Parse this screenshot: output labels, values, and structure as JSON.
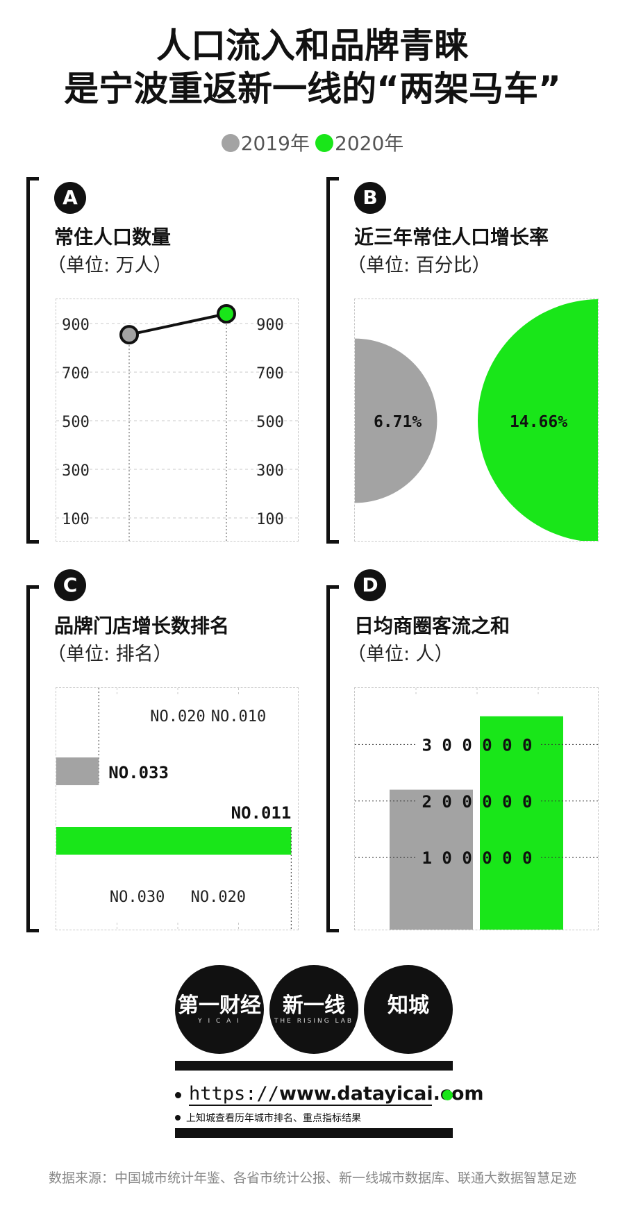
{
  "title_line1": "人口流入和品牌青睐",
  "title_line2": "是宁波重返新一线的“两架马车”",
  "legend": [
    {
      "label": "2019年",
      "color": "#a3a3a3"
    },
    {
      "label": "2020年",
      "color": "#19e619"
    }
  ],
  "colors": {
    "y2019": "#a3a3a3",
    "y2020": "#19e619"
  },
  "panels": {
    "a": {
      "badge": "A",
      "title": "常住人口数量",
      "unit": "（单位: 万人）"
    },
    "b": {
      "badge": "B",
      "title": "近三年常住人口增长率",
      "unit": "（单位: 百分比）"
    },
    "c": {
      "badge": "C",
      "title": "品牌门店增长数排名",
      "unit": "（单位: 排名）"
    },
    "d": {
      "badge": "D",
      "title": "日均商圈客流之和",
      "unit": "（单位: 人）"
    }
  },
  "chart_data": [
    {
      "type": "line",
      "categories": [
        "2019年",
        "2020年"
      ],
      "values": [
        854,
        940
      ],
      "ylim": [
        0,
        1000
      ],
      "yticks": [
        "900",
        "700",
        "500",
        "300",
        "100"
      ],
      "ytick_values": [
        900,
        700,
        500,
        300,
        100
      ]
    },
    {
      "type": "pie",
      "categories": [
        "2019年",
        "2020年"
      ],
      "values": [
        6.71,
        14.66
      ],
      "labels": [
        "6.71%",
        "14.66%"
      ]
    },
    {
      "type": "bar",
      "categories": [
        "2019年",
        "2020年"
      ],
      "values": [
        33,
        11
      ],
      "labels": [
        "NO.033",
        "NO.011"
      ],
      "ticks_top": [
        "NO.020",
        "NO.010"
      ],
      "ticks_bottom": [
        "NO.030",
        "NO.020"
      ],
      "tick_values_top": [
        20,
        10
      ],
      "tick_values_bottom": [
        30,
        20
      ],
      "range_top": [
        40,
        0
      ],
      "range_bottom": [
        40,
        10
      ]
    },
    {
      "type": "bar",
      "categories": [
        "2019年",
        "2020年"
      ],
      "values": [
        220000,
        350000
      ],
      "ylim": [
        -30000,
        400000
      ],
      "yticks": [
        "3 0 0 0 0 0",
        "2 0 0 0 0 0",
        "1 0 0 0 0 0"
      ],
      "ytick_values": [
        300000,
        200000,
        100000
      ]
    }
  ],
  "logos": [
    {
      "main": "第一财经",
      "sub": "Y I C A I"
    },
    {
      "main": "新一线",
      "sub": "THE RISING LAB"
    },
    {
      "main": "知城",
      "sub": ""
    }
  ],
  "url_prefix": "https://",
  "url_domain": "www.datayicai.com",
  "url_note": "上知城查看历年城市排名、重点指标结果",
  "source": "数据来源：中国城市统计年鉴、各省市统计公报、新一线城市数据库、联通大数据智慧足迹"
}
